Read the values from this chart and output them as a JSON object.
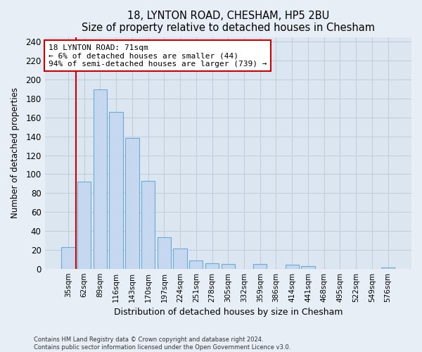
{
  "title": "18, LYNTON ROAD, CHESHAM, HP5 2BU",
  "subtitle": "Size of property relative to detached houses in Chesham",
  "xlabel": "Distribution of detached houses by size in Chesham",
  "ylabel": "Number of detached properties",
  "bar_labels": [
    "35sqm",
    "62sqm",
    "89sqm",
    "116sqm",
    "143sqm",
    "170sqm",
    "197sqm",
    "224sqm",
    "251sqm",
    "278sqm",
    "305sqm",
    "332sqm",
    "359sqm",
    "386sqm",
    "414sqm",
    "441sqm",
    "468sqm",
    "495sqm",
    "522sqm",
    "549sqm",
    "576sqm"
  ],
  "bar_values": [
    23,
    92,
    190,
    166,
    138,
    93,
    33,
    21,
    9,
    6,
    5,
    0,
    5,
    0,
    4,
    3,
    0,
    0,
    0,
    0,
    1
  ],
  "bar_color": "#c5d8f0",
  "bar_edge_color": "#6aaad4",
  "vline_color": "#cc0000",
  "annotation_text": "18 LYNTON ROAD: 71sqm\n← 6% of detached houses are smaller (44)\n94% of semi-detached houses are larger (739) →",
  "annotation_box_color": "#ffffff",
  "annotation_box_edge": "#cc0000",
  "ylim": [
    0,
    245
  ],
  "yticks": [
    0,
    20,
    40,
    60,
    80,
    100,
    120,
    140,
    160,
    180,
    200,
    220,
    240
  ],
  "footer_line1": "Contains HM Land Registry data © Crown copyright and database right 2024.",
  "footer_line2": "Contains public sector information licensed under the Open Government Licence v3.0.",
  "bg_color": "#e8eef6",
  "plot_bg_color": "#dce6f0",
  "grid_color": "#c0ccd8"
}
